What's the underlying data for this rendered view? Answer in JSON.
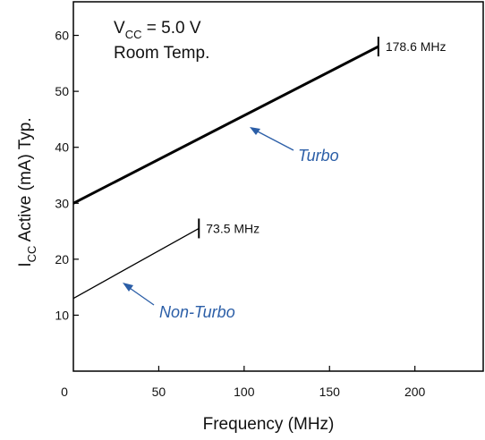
{
  "chart_data": {
    "type": "line",
    "xlabel": "Frequency (MHz)",
    "ylabel": {
      "main": "I",
      "sub": "CC",
      "rest": " Active (mA) Typ."
    },
    "xlim": [
      0,
      240
    ],
    "ylim": [
      0,
      66
    ],
    "x_ticks": [
      0,
      50,
      100,
      150,
      200
    ],
    "y_ticks": [
      10,
      20,
      30,
      40,
      50,
      60
    ],
    "grid": false,
    "series": [
      {
        "name": "Turbo",
        "x": [
          0,
          178.6
        ],
        "y": [
          30,
          58
        ],
        "end_label": "178.6 MHz",
        "color": "#000000"
      },
      {
        "name": "Non-Turbo",
        "x": [
          0,
          73.5
        ],
        "y": [
          13,
          25.5
        ],
        "end_label": "73.5 MHz",
        "color": "#000000"
      }
    ],
    "annotations": {
      "conditions": {
        "line1_main": "V",
        "line1_sub": "CC",
        "line1_rest": " = 5.0 V",
        "line2": "Room Temp."
      },
      "label_color": "#2b5ea7"
    }
  }
}
